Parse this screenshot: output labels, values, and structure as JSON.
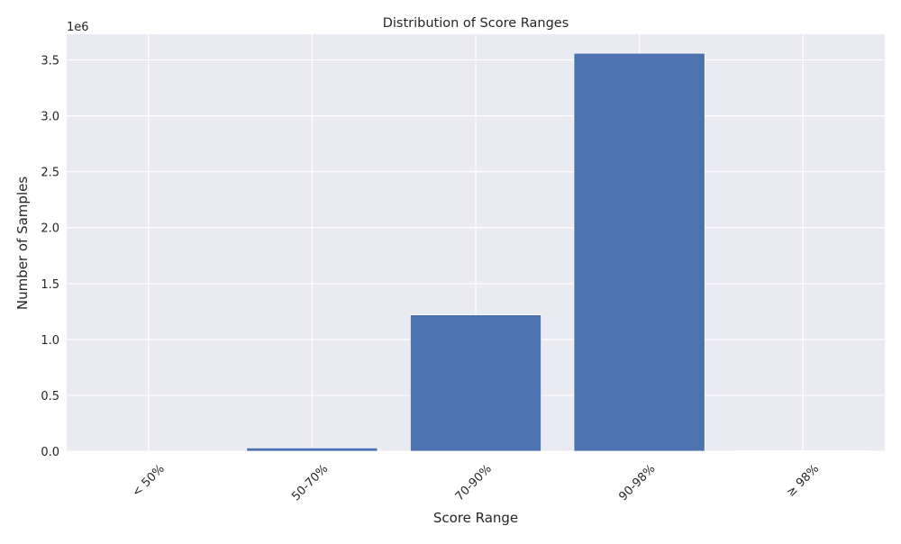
{
  "chart_data": {
    "type": "bar",
    "title": "Distribution of Score Ranges",
    "xlabel": "Score Range",
    "ylabel": "Number of Samples",
    "y_scale_label": "1e6",
    "categories": [
      "< 50%",
      "50-70%",
      "70-90%",
      "90-98%",
      "≥ 98%"
    ],
    "values": [
      1000,
      30000,
      1220000,
      3560000,
      3000
    ],
    "ylim": [
      0,
      3730000
    ],
    "yticks": [
      0,
      500000,
      1000000,
      1500000,
      2000000,
      2500000,
      3000000,
      3500000
    ],
    "ytick_labels": [
      "0.0",
      "0.5",
      "1.0",
      "1.5",
      "2.0",
      "2.5",
      "3.0",
      "3.5"
    ],
    "grid": true,
    "legend": "none",
    "colors": {
      "bar": "#4c72b0",
      "plot_background": "#eaeaf2",
      "grid": "#ffffff",
      "text": "#262626"
    }
  }
}
